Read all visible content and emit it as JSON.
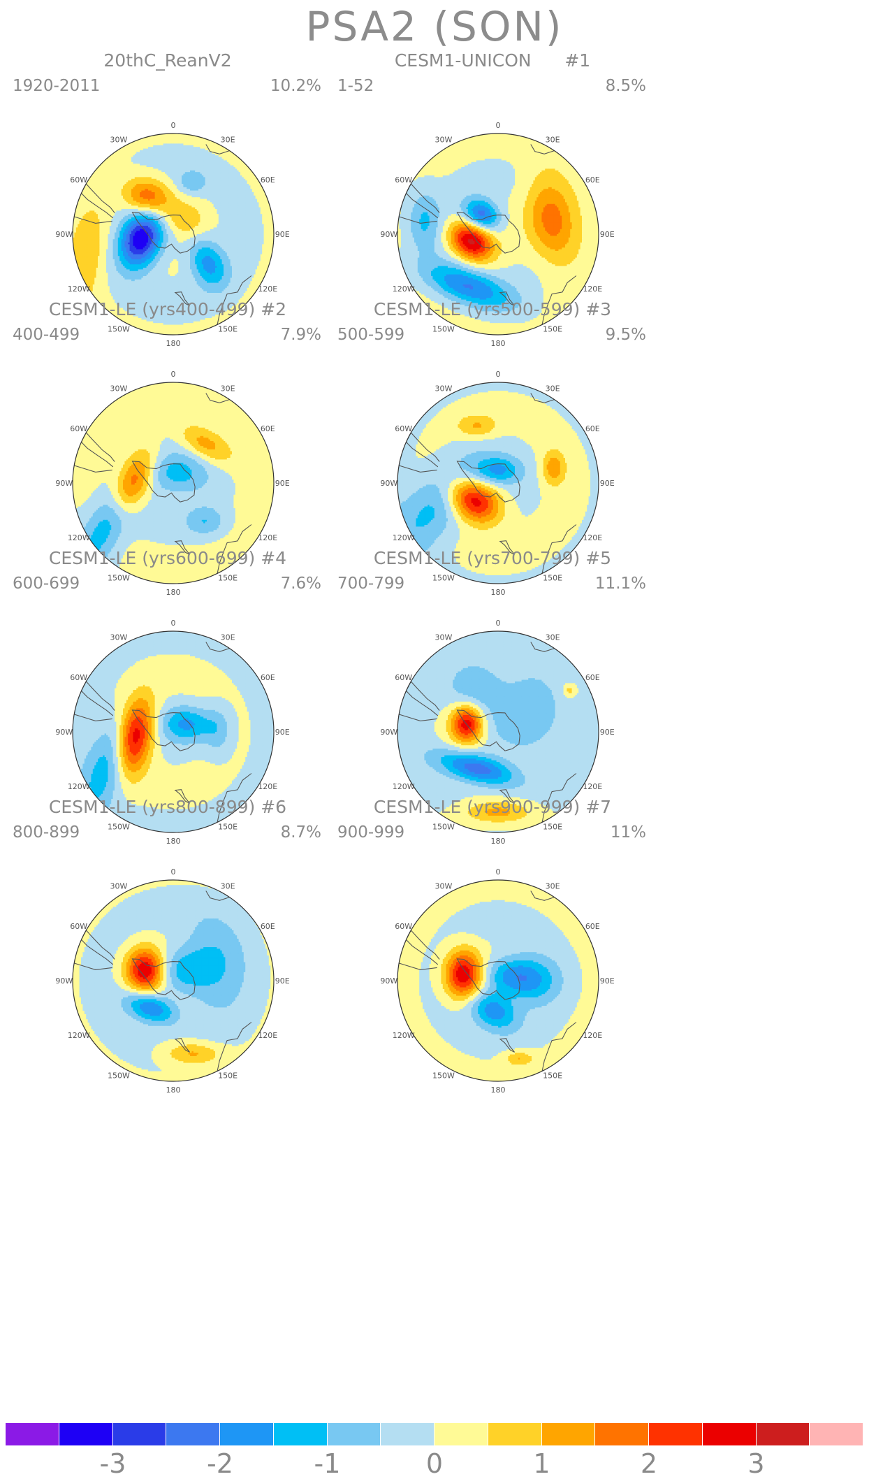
{
  "title": "PSA2 (SON)",
  "longitude_labels": [
    "0",
    "30E",
    "60E",
    "90E",
    "120E",
    "150E",
    "180",
    "150W",
    "120W",
    "90W",
    "60W",
    "30W"
  ],
  "panels": [
    {
      "title": "20thC_ReanV2",
      "period": "1920-2011",
      "percent": "10.2%",
      "blobs": [
        {
          "lon": -98,
          "r": 0.32,
          "rx": 0.14,
          "ry": 0.2,
          "rot": 20,
          "v": -3.6
        },
        {
          "lon": -35,
          "r": 0.45,
          "rx": 0.17,
          "ry": 0.13,
          "rot": 20,
          "v": 2.0
        },
        {
          "lon": 40,
          "r": 0.18,
          "rx": 0.14,
          "ry": 0.12,
          "rot": 0,
          "v": 0.8
        },
        {
          "lon": 130,
          "r": 0.45,
          "rx": 0.12,
          "ry": 0.18,
          "rot": -25,
          "v": -1.7
        },
        {
          "lon": -100,
          "r": 0.85,
          "rx": 0.14,
          "ry": 0.4,
          "rot": 10,
          "v": 0.9
        },
        {
          "lon": 20,
          "r": 0.55,
          "rx": 0.1,
          "ry": 0.08,
          "rot": 0,
          "v": -0.9
        }
      ]
    },
    {
      "title": "CESM1-UNICON      #1",
      "period": "1-52",
      "percent": "8.5%",
      "blobs": [
        {
          "lon": -105,
          "r": 0.28,
          "rx": 0.16,
          "ry": 0.12,
          "rot": 35,
          "v": 3.1
        },
        {
          "lon": -40,
          "r": 0.25,
          "rx": 0.13,
          "ry": 0.1,
          "rot": 30,
          "v": -2.3
        },
        {
          "lon": 75,
          "r": 0.55,
          "rx": 0.17,
          "ry": 0.3,
          "rot": -10,
          "v": 1.9
        },
        {
          "lon": -150,
          "r": 0.6,
          "rx": 0.33,
          "ry": 0.12,
          "rot": 20,
          "v": -1.9
        },
        {
          "lon": -80,
          "r": 0.75,
          "rx": 0.12,
          "ry": 0.22,
          "rot": 0,
          "v": -1.1
        }
      ]
    },
    {
      "title": "CESM1-LE (yrs400-499) #2",
      "period": "400-499",
      "percent": "7.9%",
      "blobs": [
        {
          "lon": -90,
          "r": 0.4,
          "rx": 0.12,
          "ry": 0.25,
          "rot": 25,
          "v": 2.7
        },
        {
          "lon": 40,
          "r": 0.5,
          "rx": 0.2,
          "ry": 0.1,
          "rot": 30,
          "v": 1.3
        },
        {
          "lon": -120,
          "r": 0.72,
          "rx": 0.14,
          "ry": 0.4,
          "rot": 30,
          "v": -1.6
        },
        {
          "lon": 20,
          "r": 0.1,
          "rx": 0.2,
          "ry": 0.14,
          "rot": 0,
          "v": -1.3
        },
        {
          "lon": 140,
          "r": 0.5,
          "rx": 0.14,
          "ry": 0.1,
          "rot": 0,
          "v": -0.9
        }
      ]
    },
    {
      "title": "CESM1-LE (yrs500-599) #3",
      "period": "500-599",
      "percent": "9.5%",
      "blobs": [
        {
          "lon": -125,
          "r": 0.3,
          "rx": 0.19,
          "ry": 0.14,
          "rot": 30,
          "v": 3.2
        },
        {
          "lon": -20,
          "r": 0.6,
          "rx": 0.14,
          "ry": 0.08,
          "rot": 0,
          "v": 1.0
        },
        {
          "lon": 75,
          "r": 0.57,
          "rx": 0.08,
          "ry": 0.12,
          "rot": 0,
          "v": 1.3
        },
        {
          "lon": -110,
          "r": 0.65,
          "rx": 0.2,
          "ry": 0.4,
          "rot": 40,
          "v": -1.3
        },
        {
          "lon": 0,
          "r": 0.12,
          "rx": 0.16,
          "ry": 0.1,
          "rot": 0,
          "v": -1.5
        }
      ]
    },
    {
      "title": "CESM1-LE (yrs600-699) #4",
      "period": "600-699",
      "percent": "7.6%",
      "blobs": [
        {
          "lon": -95,
          "r": 0.38,
          "rx": 0.12,
          "ry": 0.26,
          "rot": 10,
          "v": 3.0
        },
        {
          "lon": 60,
          "r": 0.15,
          "rx": 0.18,
          "ry": 0.12,
          "rot": 0,
          "v": -1.5
        },
        {
          "lon": -115,
          "r": 0.72,
          "rx": 0.14,
          "ry": 0.4,
          "rot": 20,
          "v": -1.3
        },
        {
          "lon": 90,
          "r": 0.45,
          "rx": 0.1,
          "ry": 0.18,
          "rot": 0,
          "v": -0.8
        }
      ]
    },
    {
      "title": "CESM1-LE (yrs700-799) #5",
      "period": "700-799",
      "percent": "11.1%",
      "blobs": [
        {
          "lon": -75,
          "r": 0.32,
          "rx": 0.11,
          "ry": 0.13,
          "rot": 0,
          "v": 2.9
        },
        {
          "lon": -150,
          "r": 0.42,
          "rx": 0.28,
          "ry": 0.1,
          "rot": 15,
          "v": -2.4
        },
        {
          "lon": 180,
          "r": 0.8,
          "rx": 0.25,
          "ry": 0.08,
          "rot": 0,
          "v": 1.3
        },
        {
          "lon": 60,
          "r": 0.35,
          "rx": 0.22,
          "ry": 0.28,
          "rot": 0,
          "v": -1.1
        },
        {
          "lon": -30,
          "r": 0.45,
          "rx": 0.2,
          "ry": 0.2,
          "rot": 0,
          "v": -1.0
        },
        {
          "lon": 60,
          "r": 0.82,
          "rx": 0.05,
          "ry": 0.05,
          "rot": 0,
          "v": 0.9
        }
      ]
    },
    {
      "title": "CESM1-LE (yrs800-899) #6",
      "period": "800-899",
      "percent": "8.7%",
      "blobs": [
        {
          "lon": -70,
          "r": 0.3,
          "rx": 0.13,
          "ry": 0.15,
          "rot": 0,
          "v": 2.9
        },
        {
          "lon": -140,
          "r": 0.35,
          "rx": 0.18,
          "ry": 0.1,
          "rot": 20,
          "v": -2.1
        },
        {
          "lon": 165,
          "r": 0.75,
          "rx": 0.2,
          "ry": 0.08,
          "rot": 0,
          "v": 1.2
        },
        {
          "lon": 70,
          "r": 0.4,
          "rx": 0.22,
          "ry": 0.32,
          "rot": 0,
          "v": -1.1
        },
        {
          "lon": 40,
          "r": 0.15,
          "rx": 0.18,
          "ry": 0.14,
          "rot": 0,
          "v": -1.0
        }
      ]
    },
    {
      "title": "CESM1-LE (yrs900-999) #7",
      "period": "900-999",
      "percent": "11%",
      "blobs": [
        {
          "lon": -80,
          "r": 0.35,
          "rx": 0.13,
          "ry": 0.17,
          "rot": 0,
          "v": 3.0
        },
        {
          "lon": -170,
          "r": 0.3,
          "rx": 0.18,
          "ry": 0.12,
          "rot": 30,
          "v": -1.8
        },
        {
          "lon": 90,
          "r": 0.3,
          "rx": 0.2,
          "ry": 0.16,
          "rot": 0,
          "v": -1.6
        },
        {
          "lon": 165,
          "r": 0.8,
          "rx": 0.1,
          "ry": 0.05,
          "rot": 0,
          "v": 1.0
        },
        {
          "lon": 50,
          "r": 0.1,
          "rx": 0.18,
          "ry": 0.12,
          "rot": 0,
          "v": -1.0
        }
      ]
    }
  ],
  "colorbar": {
    "colors": [
      "#8b1ae6",
      "#1e00f5",
      "#2a3ce8",
      "#3c78f0",
      "#1e96f5",
      "#00bff5",
      "#78c8f2",
      "#b4def2",
      "#fffa96",
      "#ffd228",
      "#ffa500",
      "#ff7300",
      "#ff3200",
      "#eb0000",
      "#cd1e1e",
      "#ffb4b4"
    ],
    "bounds": [
      -3.5,
      -3,
      -2.5,
      -2,
      -1.5,
      -1,
      -0.5,
      0,
      0.5,
      1,
      1.5,
      2,
      2.5,
      3,
      3.5
    ],
    "tick_labels": [
      "-3",
      "-2",
      "-1",
      "0",
      "1",
      "2",
      "3"
    ],
    "tick_values": [
      -3,
      -2,
      -1,
      0,
      1,
      2,
      3
    ]
  }
}
